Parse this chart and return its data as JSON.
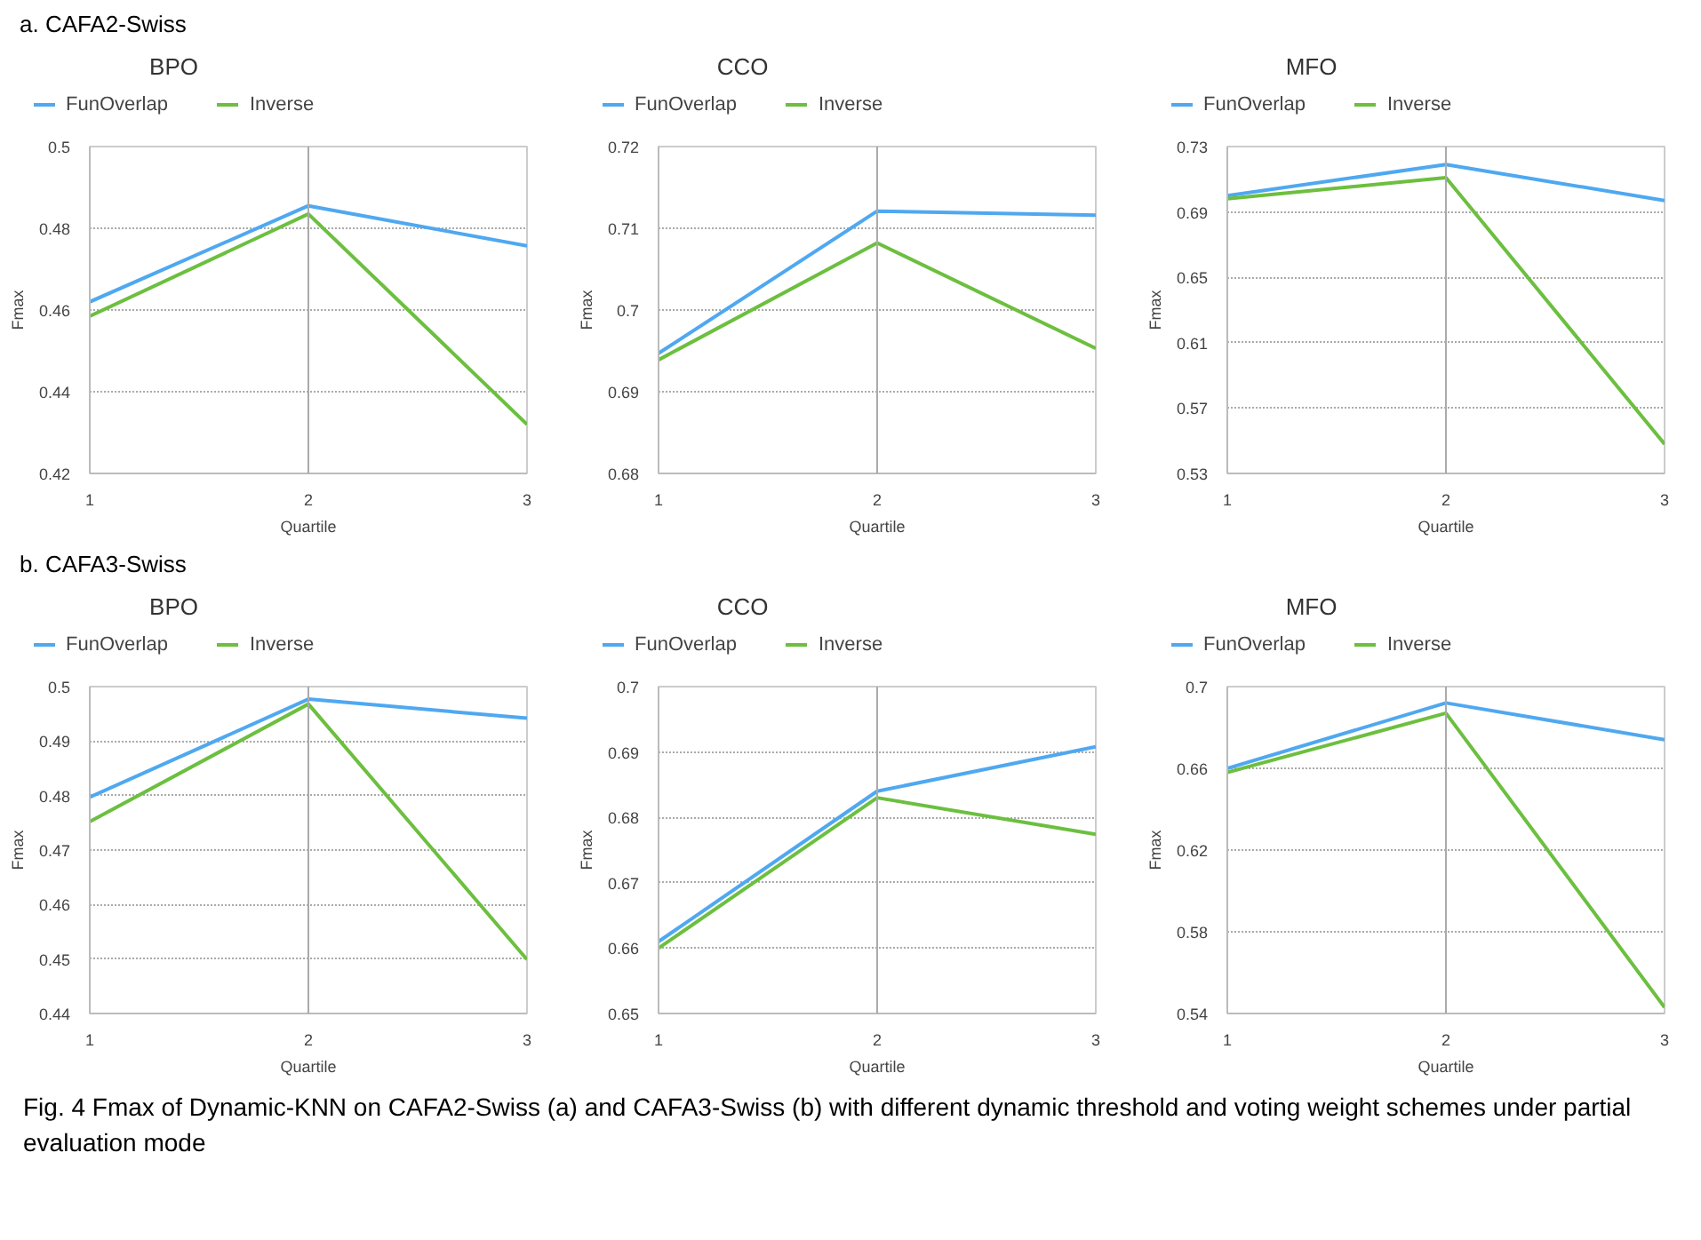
{
  "chart_data": [
    {
      "type": "line",
      "title": "BPO",
      "xlabel": "Quartile",
      "ylabel": "Fmax",
      "x": [
        1,
        2,
        3
      ],
      "xlim": [
        1,
        3
      ],
      "xticks": [
        1,
        2,
        3
      ],
      "ylim": [
        0.42,
        0.5
      ],
      "yticks": [
        0.42,
        0.44,
        0.46,
        0.48,
        0.5
      ],
      "grid": "y",
      "ref_lines": [
        {
          "axis": "x",
          "value": 2,
          "color": "#aaaaaa"
        }
      ],
      "legend": "top",
      "annotations": [
        "a. CAFA2-Swiss"
      ],
      "series": [
        {
          "name": "FunOverlap",
          "color": "#4fa8f0",
          "values": [
            0.462,
            0.4855,
            0.4757
          ]
        },
        {
          "name": "Inverse",
          "color": "#6cbf3f",
          "values": [
            0.4585,
            0.4835,
            0.432
          ]
        }
      ]
    },
    {
      "type": "line",
      "title": "CCO",
      "xlabel": "Quartile",
      "ylabel": "Fmax",
      "x": [
        1,
        2,
        3
      ],
      "xlim": [
        1,
        3
      ],
      "xticks": [
        1,
        2,
        3
      ],
      "ylim": [
        0.68,
        0.72
      ],
      "yticks": [
        0.68,
        0.69,
        0.7,
        0.71,
        0.72
      ],
      "grid": "y",
      "ref_lines": [
        {
          "axis": "x",
          "value": 2,
          "color": "#aaaaaa"
        }
      ],
      "legend": "top",
      "series": [
        {
          "name": "FunOverlap",
          "color": "#4fa8f0",
          "values": [
            0.6947,
            0.7121,
            0.7116
          ]
        },
        {
          "name": "Inverse",
          "color": "#6cbf3f",
          "values": [
            0.6939,
            0.7082,
            0.6953
          ]
        }
      ]
    },
    {
      "type": "line",
      "title": "MFO",
      "xlabel": "Quartile",
      "ylabel": "Fmax",
      "x": [
        1,
        2,
        3
      ],
      "xlim": [
        1,
        3
      ],
      "xticks": [
        1,
        2,
        3
      ],
      "ylim": [
        0.53,
        0.73
      ],
      "yticks": [
        0.53,
        0.57,
        0.61,
        0.65,
        0.69,
        0.73
      ],
      "grid": "y",
      "ref_lines": [
        {
          "axis": "x",
          "value": 2,
          "color": "#aaaaaa"
        }
      ],
      "legend": "top",
      "series": [
        {
          "name": "FunOverlap",
          "color": "#4fa8f0",
          "values": [
            0.7,
            0.719,
            0.697
          ]
        },
        {
          "name": "Inverse",
          "color": "#6cbf3f",
          "values": [
            0.698,
            0.711,
            0.548
          ]
        }
      ]
    },
    {
      "type": "line",
      "title": "BPO",
      "xlabel": "Quartile",
      "ylabel": "Fmax",
      "x": [
        1,
        2,
        3
      ],
      "xlim": [
        1,
        3
      ],
      "xticks": [
        1,
        2,
        3
      ],
      "ylim": [
        0.44,
        0.5
      ],
      "yticks": [
        0.44,
        0.45,
        0.46,
        0.47,
        0.48,
        0.49,
        0.5
      ],
      "grid": "y",
      "ref_lines": [
        {
          "axis": "x",
          "value": 2,
          "color": "#aaaaaa"
        }
      ],
      "legend": "top",
      "annotations": [
        "b. CAFA3-Swiss"
      ],
      "series": [
        {
          "name": "FunOverlap",
          "color": "#4fa8f0",
          "values": [
            0.4797,
            0.4977,
            0.4942
          ]
        },
        {
          "name": "Inverse",
          "color": "#6cbf3f",
          "values": [
            0.4752,
            0.4968,
            0.4499
          ]
        }
      ]
    },
    {
      "type": "line",
      "title": "CCO",
      "xlabel": "Quartile",
      "ylabel": "Fmax",
      "x": [
        1,
        2,
        3
      ],
      "xlim": [
        1,
        3
      ],
      "xticks": [
        1,
        2,
        3
      ],
      "ylim": [
        0.65,
        0.7
      ],
      "yticks": [
        0.65,
        0.66,
        0.67,
        0.68,
        0.69,
        0.7
      ],
      "grid": "y",
      "ref_lines": [
        {
          "axis": "x",
          "value": 2,
          "color": "#aaaaaa"
        }
      ],
      "legend": "top",
      "series": [
        {
          "name": "FunOverlap",
          "color": "#4fa8f0",
          "values": [
            0.661,
            0.684,
            0.6908
          ]
        },
        {
          "name": "Inverse",
          "color": "#6cbf3f",
          "values": [
            0.66,
            0.683,
            0.6774
          ]
        }
      ]
    },
    {
      "type": "line",
      "title": "MFO",
      "xlabel": "Quartile",
      "ylabel": "Fmax",
      "x": [
        1,
        2,
        3
      ],
      "xlim": [
        1,
        3
      ],
      "xticks": [
        1,
        2,
        3
      ],
      "ylim": [
        0.54,
        0.7
      ],
      "yticks": [
        0.54,
        0.58,
        0.62,
        0.66,
        0.7
      ],
      "grid": "y",
      "ref_lines": [
        {
          "axis": "x",
          "value": 2,
          "color": "#aaaaaa"
        }
      ],
      "legend": "top",
      "annotations": [
        "Fig. 4 Fmax of Dynamic-KNN on CAFA2-Swiss (a) and CAFA3-Swiss (b) with different dynamic threshold and voting weight schemes under partial evaluation mode"
      ],
      "series": [
        {
          "name": "FunOverlap",
          "color": "#4fa8f0",
          "values": [
            0.66,
            0.692,
            0.674
          ]
        },
        {
          "name": "Inverse",
          "color": "#6cbf3f",
          "values": [
            0.658,
            0.687,
            0.543
          ]
        }
      ]
    }
  ]
}
